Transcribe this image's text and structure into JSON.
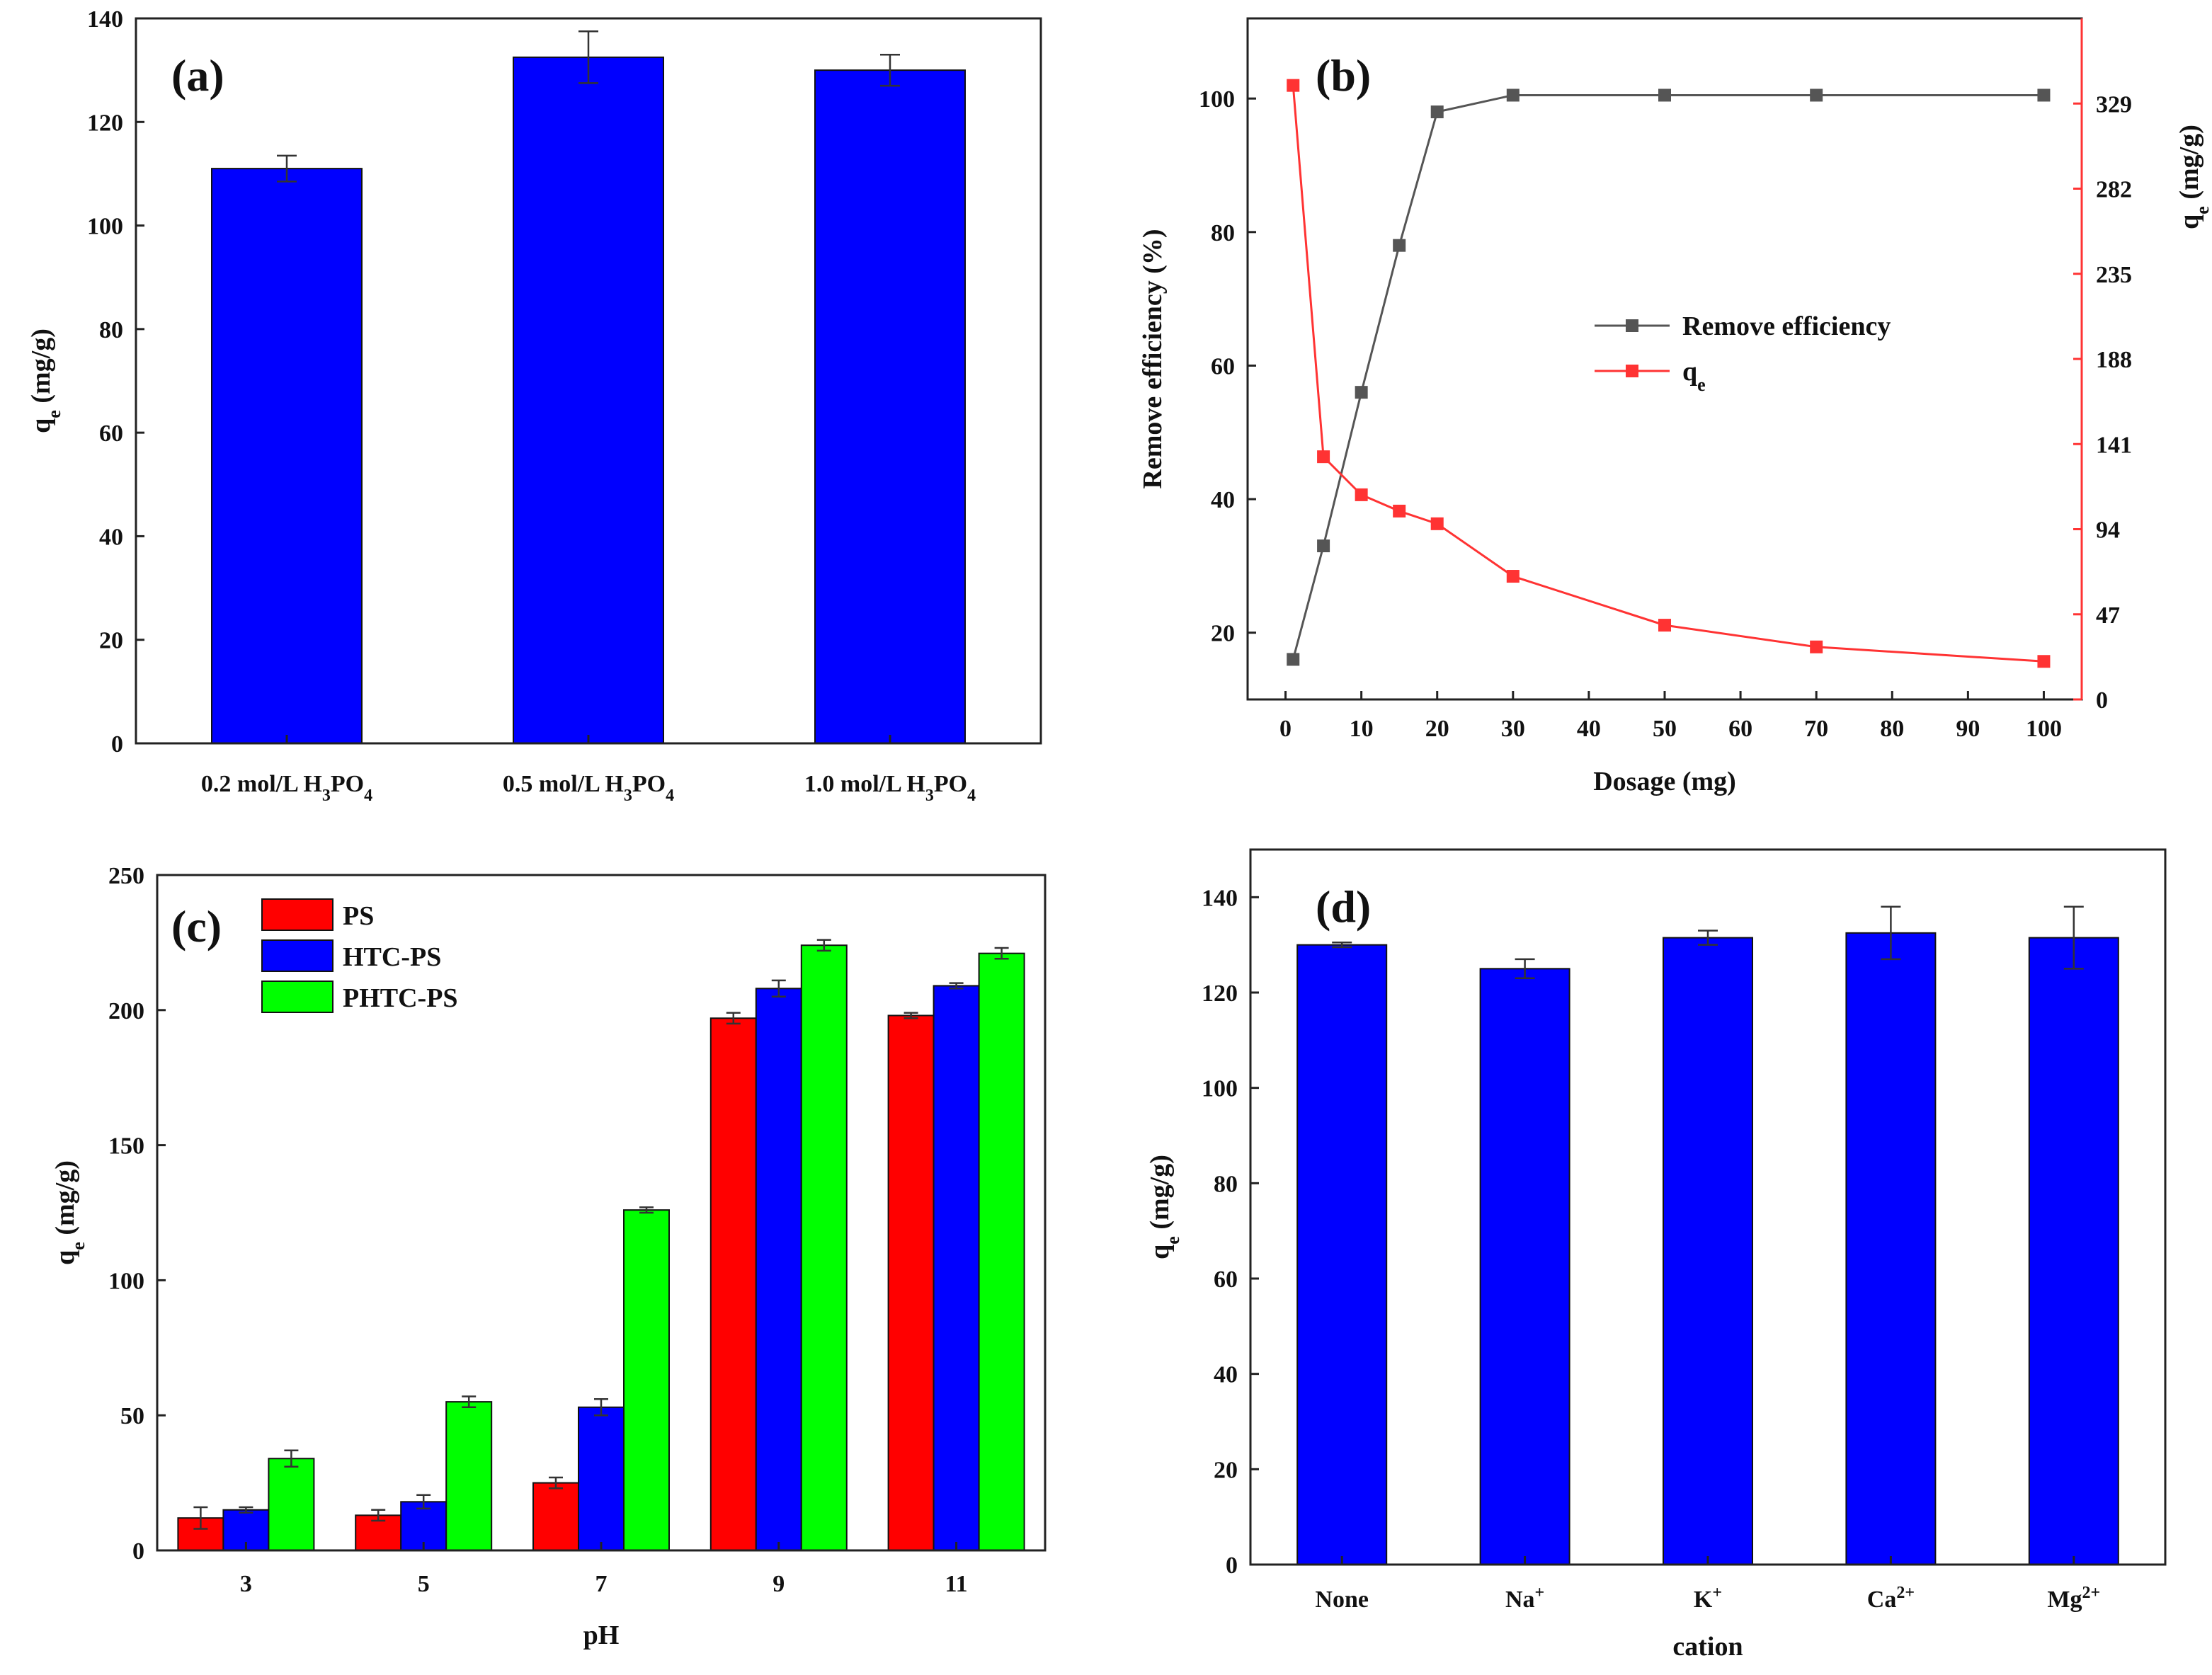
{
  "chart_data": [
    {
      "panel": "(a)",
      "type": "bar",
      "xlabel": "",
      "ylabel": {
        "main": "q",
        "sub": "e",
        "rest": " (mg/g)"
      },
      "ylim": [
        0,
        140
      ],
      "yticks": [
        0,
        20,
        40,
        60,
        80,
        100,
        120,
        140
      ],
      "categories": [
        {
          "pre": "0.2 mol/L H",
          "s1": "3",
          "mid": "PO",
          "s2": "4"
        },
        {
          "pre": "0.5 mol/L H",
          "s1": "3",
          "mid": "PO",
          "s2": "4"
        },
        {
          "pre": "1.0 mol/L H",
          "s1": "3",
          "mid": "PO",
          "s2": "4"
        }
      ],
      "values": [
        111,
        132.5,
        130
      ],
      "errors": [
        2.5,
        5,
        3
      ],
      "bar_color": "#0000ff"
    },
    {
      "panel": "(b)",
      "type": "line",
      "xlabel": "Dosage (mg)",
      "xlim": [
        -5,
        105
      ],
      "xticks": [
        0,
        10,
        20,
        30,
        40,
        50,
        60,
        70,
        80,
        90,
        100
      ],
      "y_left_label": "Remove efficiency (%)",
      "y_left_lim": [
        10,
        112
      ],
      "y_left_ticks": [
        20,
        40,
        60,
        80,
        100
      ],
      "y_right_label": {
        "main": "q",
        "sub": "e",
        "rest": " (mg/g)"
      },
      "y_right_lim": [
        0,
        376
      ],
      "y_right_ticks": [
        0,
        47,
        94,
        141,
        188,
        235,
        282,
        329
      ],
      "legend": [
        {
          "name": "Remove efficiency",
          "name_sub": "",
          "color": "#555555"
        },
        {
          "name": "q",
          "name_sub": "e",
          "color": "#ff3333"
        }
      ],
      "series": [
        {
          "axis": "left",
          "color": "#555555",
          "x": [
            1,
            5,
            10,
            15,
            20,
            30,
            50,
            70,
            100
          ],
          "y": [
            16,
            33,
            56,
            78,
            98,
            100.5,
            100.5,
            100.5,
            100.5
          ]
        },
        {
          "axis": "right",
          "color": "#ff3333",
          "x": [
            1,
            5,
            10,
            15,
            20,
            30,
            50,
            70,
            100
          ],
          "y": [
            339,
            134,
            113,
            104,
            97,
            68,
            41,
            29,
            21
          ]
        }
      ]
    },
    {
      "panel": "(c)",
      "type": "bar",
      "xlabel": "pH",
      "ylabel": {
        "main": "q",
        "sub": "e",
        "rest": " (mg/g)"
      },
      "ylim": [
        0,
        250
      ],
      "yticks": [
        0,
        50,
        100,
        150,
        200,
        250
      ],
      "categories": [
        "3",
        "5",
        "7",
        "9",
        "11"
      ],
      "legend_position": "top-left",
      "series": [
        {
          "name": "PS",
          "color": "#ff0000",
          "values": [
            12,
            13,
            25,
            197,
            198
          ],
          "errors": [
            4,
            2,
            2,
            2,
            1
          ]
        },
        {
          "name": "HTC-PS",
          "color": "#0000ff",
          "values": [
            15,
            18,
            53,
            208,
            209
          ],
          "errors": [
            1,
            2.5,
            3,
            3,
            1
          ]
        },
        {
          "name": "PHTC-PS",
          "color": "#00ff00",
          "values": [
            34,
            55,
            126,
            224,
            221
          ],
          "errors": [
            3,
            2,
            1,
            2,
            2
          ]
        }
      ]
    },
    {
      "panel": "(d)",
      "type": "bar",
      "xlabel": "cation",
      "ylabel": {
        "main": "q",
        "sub": "e",
        "rest": " (mg/g)"
      },
      "ylim": [
        0,
        150
      ],
      "yticks": [
        0,
        20,
        40,
        60,
        80,
        100,
        120,
        140
      ],
      "categories": [
        {
          "base": "None",
          "sup": ""
        },
        {
          "base": "Na",
          "sup": "+"
        },
        {
          "base": "K",
          "sup": "+"
        },
        {
          "base": "Ca",
          "sup": "2+"
        },
        {
          "base": "Mg",
          "sup": "2+"
        }
      ],
      "values": [
        130,
        125,
        131.5,
        132.5,
        131.5
      ],
      "errors": [
        0.5,
        2,
        1.5,
        5.5,
        6.5
      ],
      "bar_color": "#0000ff"
    }
  ]
}
